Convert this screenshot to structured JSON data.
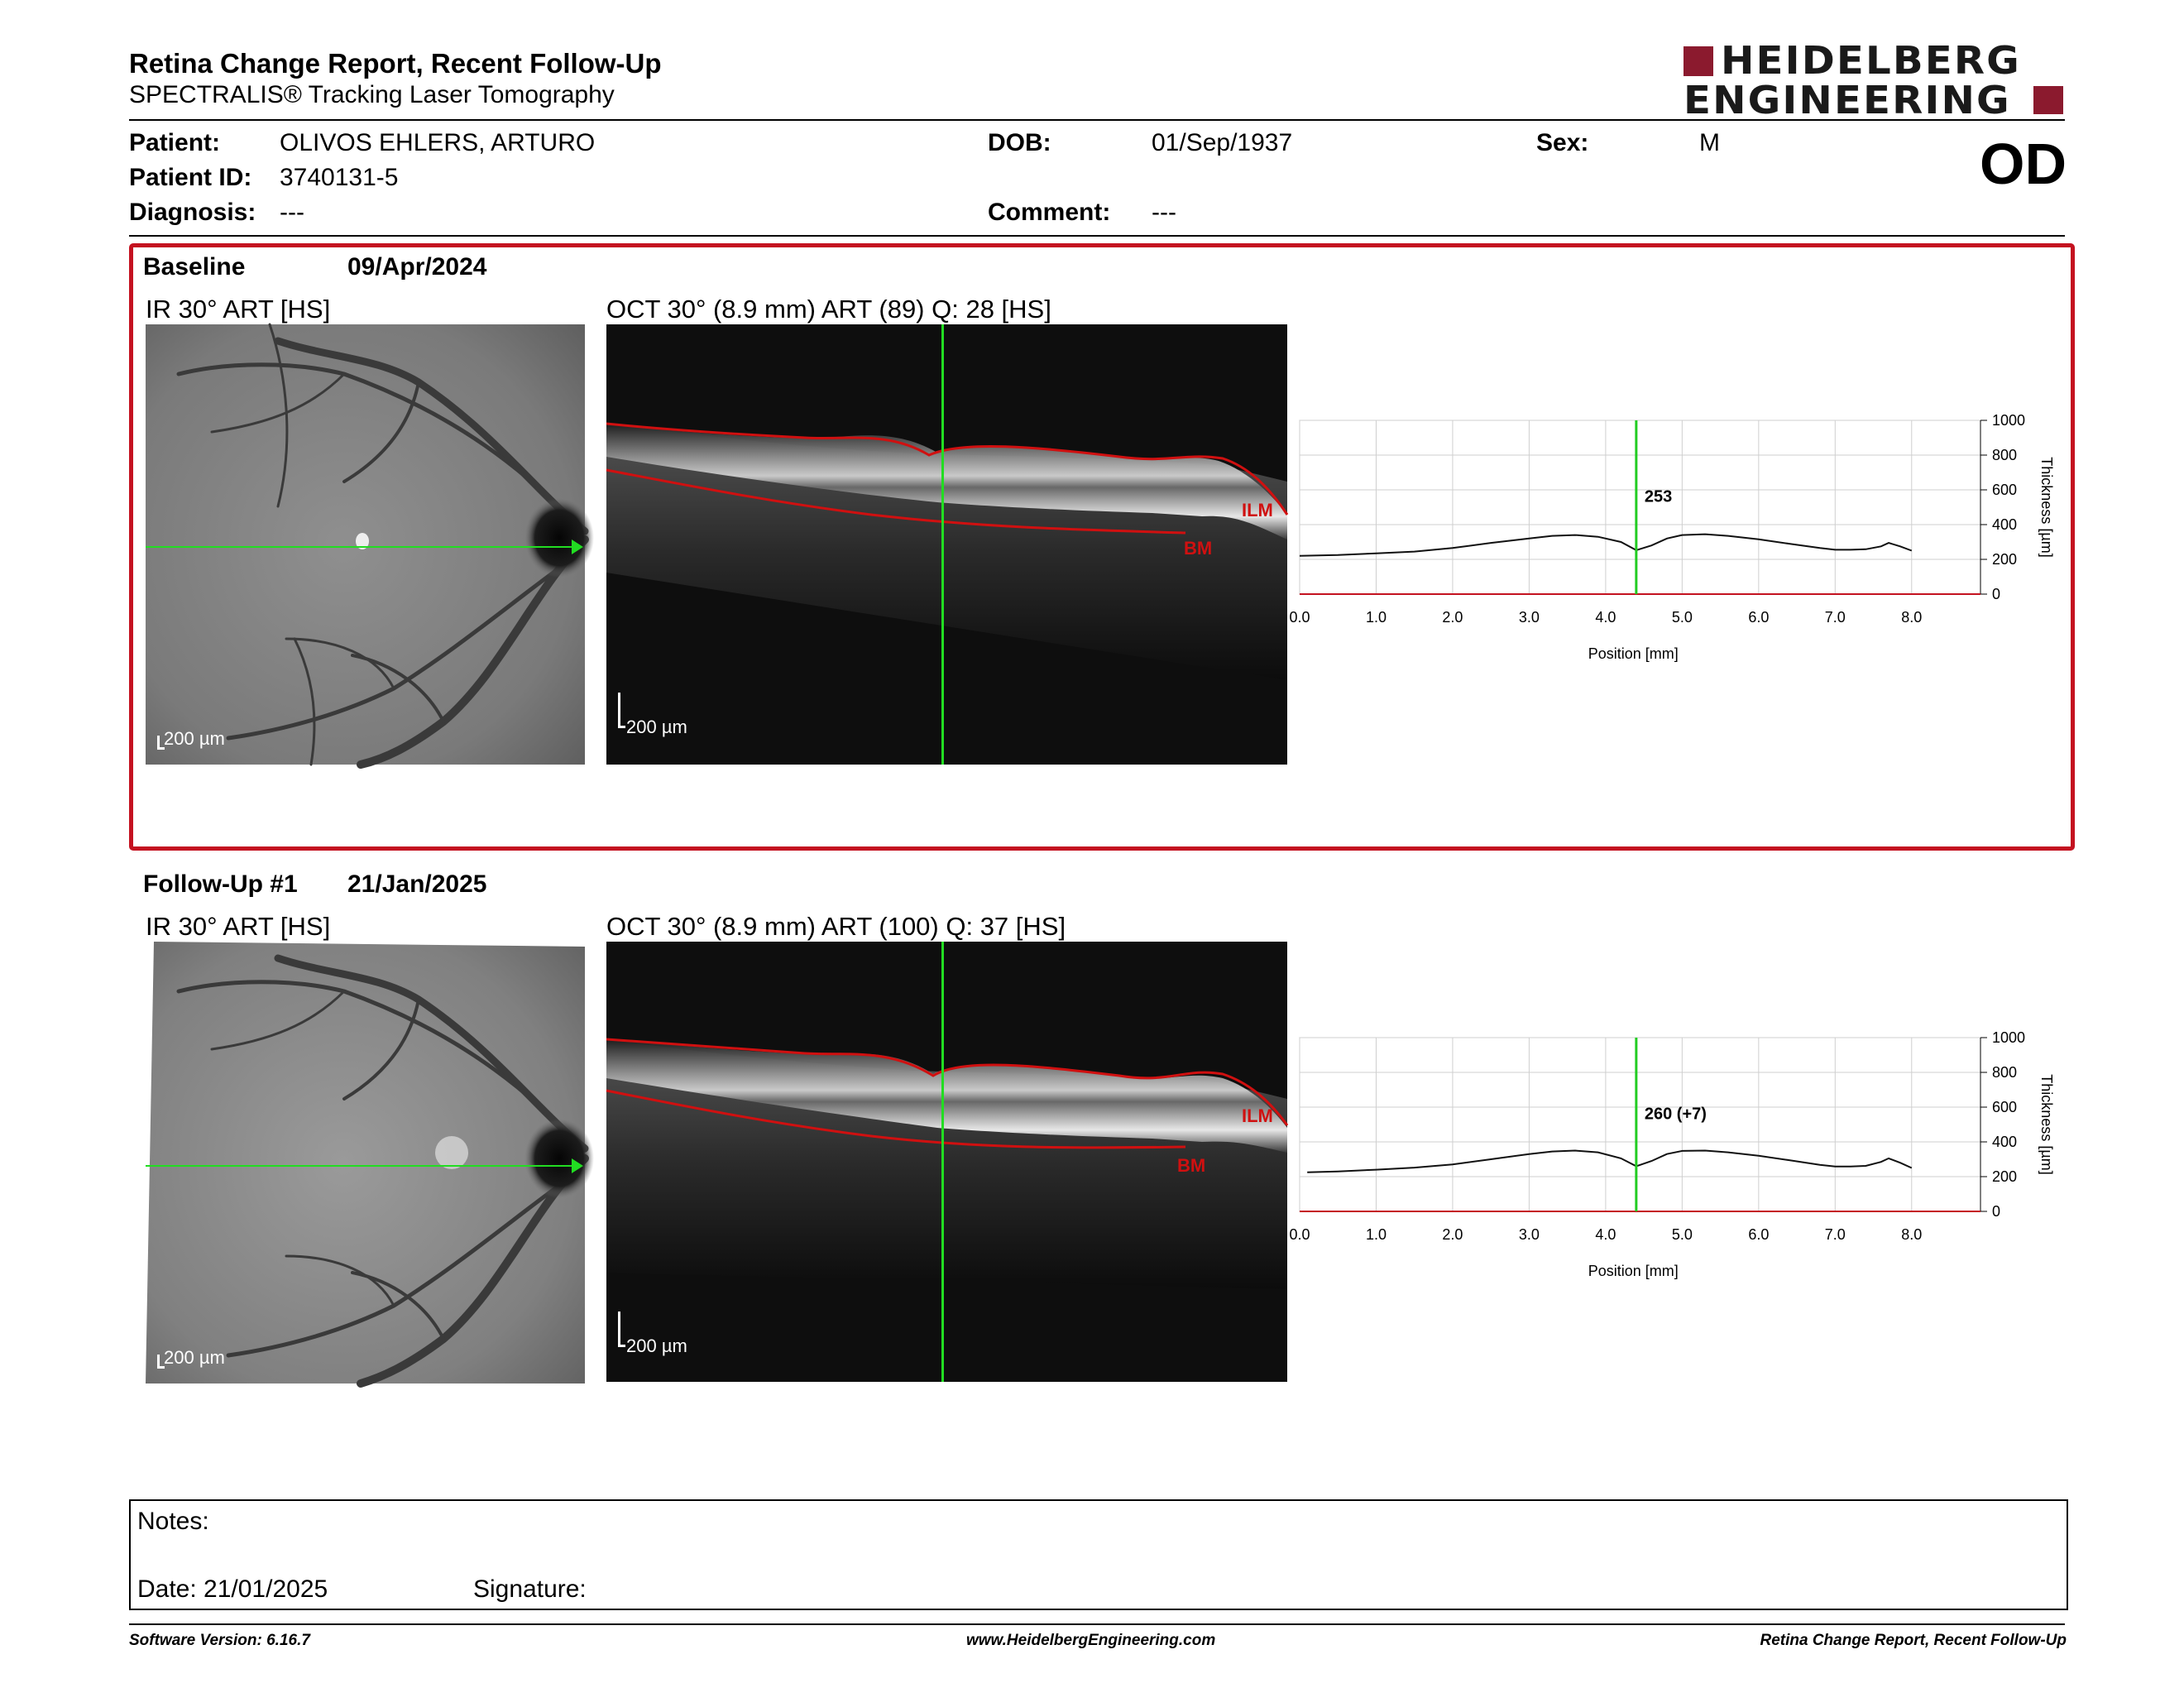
{
  "header": {
    "title": "Retina Change Report, Recent Follow-Up",
    "subtitle": "SPECTRALIS® Tracking Laser Tomography",
    "logo_line1": "HEIDELBERG",
    "logo_line2": "ENGINEERING",
    "eye": "OD"
  },
  "patient": {
    "patient_label": "Patient:",
    "patient_value": "OLIVOS EHLERS, ARTURO",
    "id_label": "Patient ID:",
    "id_value": "3740131-5",
    "diagnosis_label": "Diagnosis:",
    "diagnosis_value": "---",
    "dob_label": "DOB:",
    "dob_value": "01/Sep/1937",
    "comment_label": "Comment:",
    "comment_value": "---",
    "sex_label": "Sex:",
    "sex_value": "M"
  },
  "baseline": {
    "label": "Baseline",
    "date": "09/Apr/2024",
    "ir_caption": "IR 30° ART [HS]",
    "oct_caption": "OCT 30° (8.9 mm) ART (89) Q: 28 [HS]",
    "scale": "200 µm",
    "ilm": "ILM",
    "bm": "BM",
    "marker_value": "253"
  },
  "followup": {
    "label": "Follow-Up #1",
    "date": "21/Jan/2025",
    "ir_caption": "IR 30° ART [HS]",
    "oct_caption": "OCT 30° (8.9 mm) ART (100) Q: 37 [HS]",
    "scale": "200 µm",
    "ilm": "ILM",
    "bm": "BM",
    "marker_value": "260 (+7)"
  },
  "notes": {
    "notes_label": "Notes:",
    "date_label": "Date: 21/01/2025",
    "signature_label": "Signature:"
  },
  "footer": {
    "left": "Software Version: 6.16.7",
    "center": "www.HeidelbergEngineering.com",
    "right": "Retina Change Report, Recent Follow-Up"
  },
  "colors": {
    "brand": "#8b1a2e",
    "section_border": "#c41220",
    "marker": "#00cc00",
    "segmentation": "#d01010"
  },
  "chart_data": [
    {
      "type": "line",
      "name": "baseline",
      "xlabel": "Position [mm]",
      "ylabel": "Thickness [µm]",
      "xlim": [
        0,
        8.9
      ],
      "ylim": [
        0,
        1000
      ],
      "x_ticks": [
        "0.0",
        "1.0",
        "2.0",
        "3.0",
        "4.0",
        "5.0",
        "6.0",
        "7.0",
        "8.0"
      ],
      "y_ticks": [
        "0",
        "200",
        "400",
        "600",
        "800",
        "1000"
      ],
      "marker_x": 4.4,
      "x": [
        0.0,
        0.5,
        1.0,
        1.5,
        2.0,
        2.5,
        3.0,
        3.3,
        3.6,
        3.9,
        4.2,
        4.4,
        4.6,
        4.8,
        5.0,
        5.3,
        5.6,
        6.0,
        6.4,
        6.8,
        7.0,
        7.2,
        7.4,
        7.6,
        7.7,
        7.85,
        8.0
      ],
      "y": [
        220,
        225,
        235,
        245,
        265,
        295,
        320,
        335,
        340,
        330,
        300,
        253,
        280,
        320,
        340,
        345,
        335,
        315,
        290,
        265,
        255,
        255,
        258,
        275,
        295,
        275,
        250
      ],
      "grid": true
    },
    {
      "type": "line",
      "name": "followup",
      "xlabel": "Position [mm]",
      "ylabel": "Thickness [µm]",
      "xlim": [
        0,
        8.9
      ],
      "ylim": [
        0,
        1000
      ],
      "x_ticks": [
        "0.0",
        "1.0",
        "2.0",
        "3.0",
        "4.0",
        "5.0",
        "6.0",
        "7.0",
        "8.0"
      ],
      "y_ticks": [
        "0",
        "200",
        "400",
        "600",
        "800",
        "1000"
      ],
      "marker_x": 4.4,
      "x": [
        0.1,
        0.5,
        1.0,
        1.5,
        2.0,
        2.5,
        3.0,
        3.3,
        3.6,
        3.9,
        4.2,
        4.4,
        4.6,
        4.8,
        5.0,
        5.3,
        5.6,
        6.0,
        6.4,
        6.8,
        7.0,
        7.2,
        7.4,
        7.6,
        7.7,
        7.85,
        8.0
      ],
      "y": [
        225,
        230,
        240,
        252,
        270,
        300,
        330,
        345,
        350,
        340,
        305,
        260,
        290,
        330,
        348,
        350,
        340,
        320,
        295,
        268,
        258,
        258,
        262,
        285,
        305,
        280,
        250
      ],
      "grid": true
    }
  ]
}
